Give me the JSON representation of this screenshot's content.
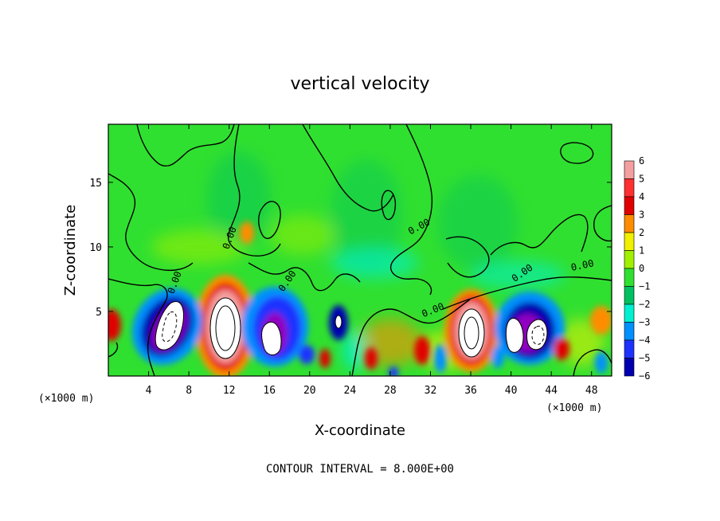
{
  "chart_data": {
    "type": "heatmap",
    "title": "vertical velocity",
    "xlabel": "X-coordinate",
    "ylabel": "Z-coordinate",
    "x_unit": "(×1000 m)",
    "y_unit": "(×1000 m)",
    "xlim": [
      0,
      50
    ],
    "ylim": [
      0,
      19.5
    ],
    "x_ticks": [
      4,
      8,
      12,
      16,
      20,
      24,
      28,
      32,
      36,
      40,
      44,
      48
    ],
    "y_ticks": [
      5,
      10,
      15
    ],
    "colorbar": {
      "levels": [
        6,
        5,
        4,
        3,
        2,
        1,
        0,
        -1,
        -2,
        -3,
        -4,
        -5,
        -6
      ],
      "colors": [
        "#f4a0a0",
        "#ff3030",
        "#e00000",
        "#ff8c00",
        "#f0f000",
        "#a0f000",
        "#30e030",
        "#00c060",
        "#00f0d0",
        "#0090ff",
        "#1e32ff",
        "#0000b0",
        "#9000c0"
      ]
    },
    "contour_labels": [
      "0.00",
      "0.00",
      "0.00",
      "0.00",
      "0.00",
      "0.00",
      "0.00"
    ],
    "features": [
      {
        "x": 11.5,
        "z": 3.5,
        "w": 9.0,
        "sign": "up"
      },
      {
        "x": 36.0,
        "z": 3.5,
        "w": 8.5,
        "sign": "up"
      },
      {
        "x": 7.0,
        "z": 3.5,
        "w": -8.0,
        "sign": "down"
      },
      {
        "x": 17.0,
        "z": 3.2,
        "w": -7.5,
        "sign": "down"
      },
      {
        "x": 41.0,
        "z": 3.0,
        "w": -7.0,
        "sign": "down"
      },
      {
        "x": 13.5,
        "z": 11.0,
        "w": 3.0,
        "sign": "up"
      },
      {
        "x": 0.5,
        "z": 4.5,
        "w": 4.0,
        "sign": "up"
      },
      {
        "x": 46.5,
        "z": 4.5,
        "w": 3.5,
        "sign": "up"
      }
    ],
    "grid": false,
    "legend": "right",
    "footer": "CONTOUR INTERVAL = 8.000E+00"
  }
}
